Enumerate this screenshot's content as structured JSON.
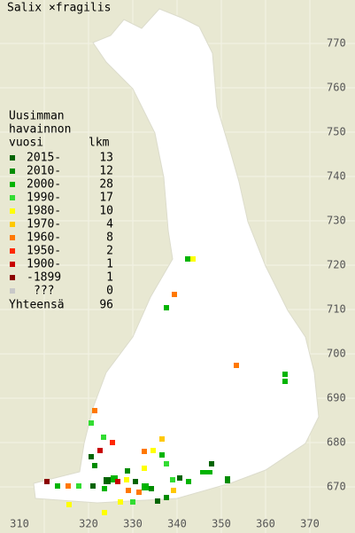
{
  "title": "Salix ×fragilis",
  "legend": {
    "heading": [
      "Uusimman",
      "havainnon",
      "vuosi"
    ],
    "count_heading": "lkm",
    "rows": [
      {
        "label": "2015-",
        "count": 13,
        "color": "#006400"
      },
      {
        "label": "2010-",
        "count": 12,
        "color": "#008c00"
      },
      {
        "label": "2000-",
        "count": 28,
        "color": "#00b400"
      },
      {
        "label": "1990-",
        "count": 17,
        "color": "#32dc32"
      },
      {
        "label": "1980-",
        "count": 10,
        "color": "#ffff00"
      },
      {
        "label": "1970-",
        "count": 4,
        "color": "#ffc800"
      },
      {
        "label": "1960-",
        "count": 8,
        "color": "#ff7800"
      },
      {
        "label": "1950-",
        "count": 2,
        "color": "#ff2800"
      },
      {
        "label": "1900-",
        "count": 1,
        "color": "#c80000"
      },
      {
        "label": "-1899",
        "count": 1,
        "color": "#8c0000"
      },
      {
        "label": "???",
        "count": 0,
        "color": "#c8c8c8"
      }
    ],
    "total": {
      "label": "Yhteensä",
      "count": 96
    }
  },
  "grid": {
    "y_labels": [
      770,
      760,
      750,
      740,
      730,
      720,
      710,
      700,
      690,
      680,
      670
    ],
    "x_labels": [
      310,
      320,
      330,
      340,
      350,
      360,
      370
    ]
  }
}
